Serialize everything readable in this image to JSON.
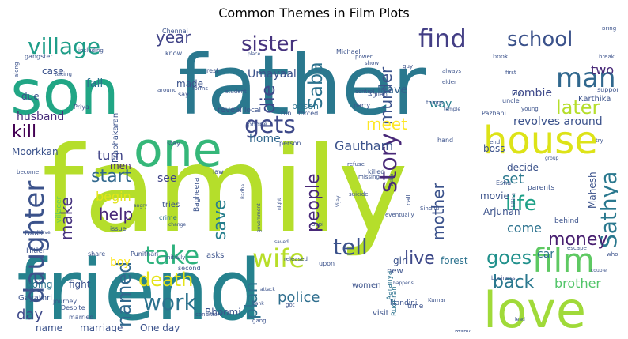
{
  "chart_data": {
    "type": "wordcloud",
    "title": "Common Themes in Film Plots",
    "colormap": "viridis",
    "background": "#ffffff",
    "words": [
      {
        "text": "family",
        "weight": 1.0,
        "color": "#b5de2b"
      },
      {
        "text": "friend",
        "weight": 0.8,
        "color": "#26828e"
      },
      {
        "text": "father",
        "weight": 0.8,
        "color": "#2a788e"
      },
      {
        "text": "son",
        "weight": 0.78,
        "color": "#21a685"
      },
      {
        "text": "love",
        "weight": 0.55,
        "color": "#a0da39"
      },
      {
        "text": "one",
        "weight": 0.52,
        "color": "#35b779"
      },
      {
        "text": "house",
        "weight": 0.45,
        "color": "#dde318"
      },
      {
        "text": "daughter",
        "weight": 0.4,
        "color": "#3b528b"
      },
      {
        "text": "film",
        "weight": 0.35,
        "color": "#5ec962"
      },
      {
        "text": "village",
        "weight": 0.32,
        "color": "#1f9e89"
      },
      {
        "text": "man",
        "weight": 0.32,
        "color": "#31688e"
      },
      {
        "text": "wife",
        "weight": 0.32,
        "color": "#b8de29"
      },
      {
        "text": "story",
        "weight": 0.31,
        "color": "#482878"
      },
      {
        "text": "find",
        "weight": 0.31,
        "color": "#433e85"
      },
      {
        "text": "take",
        "weight": 0.3,
        "color": "#2db27d"
      },
      {
        "text": "gets",
        "weight": 0.3,
        "color": "#3e4989"
      },
      {
        "text": "sister",
        "weight": 0.3,
        "color": "#46337e"
      },
      {
        "text": "school",
        "weight": 0.3,
        "color": "#3b528b"
      },
      {
        "text": "work",
        "weight": 0.28,
        "color": "#2c728e"
      },
      {
        "text": "tell",
        "weight": 0.28,
        "color": "#3b528b"
      },
      {
        "text": "Sathya",
        "weight": 0.27,
        "color": "#2a788e"
      },
      {
        "text": "death",
        "weight": 0.26,
        "color": "#e5e419"
      },
      {
        "text": "later",
        "weight": 0.26,
        "color": "#b5de2b"
      },
      {
        "text": "goes",
        "weight": 0.25,
        "color": "#21918c"
      },
      {
        "text": "life",
        "weight": 0.25,
        "color": "#1fa188"
      },
      {
        "text": "back",
        "weight": 0.25,
        "color": "#2a788e"
      },
      {
        "text": "money",
        "weight": 0.24,
        "color": "#481f70"
      },
      {
        "text": "named",
        "weight": 0.24,
        "color": "#31688e"
      },
      {
        "text": "die",
        "weight": 0.24,
        "color": "#3e4989"
      },
      {
        "text": "Saba",
        "weight": 0.23,
        "color": "#2c728e"
      },
      {
        "text": "save",
        "weight": 0.23,
        "color": "#277f8e"
      },
      {
        "text": "people",
        "weight": 0.22,
        "color": "#482878"
      },
      {
        "text": "mother",
        "weight": 0.22,
        "color": "#3b528b"
      },
      {
        "text": "plan",
        "weight": 0.22,
        "color": "#2c728e"
      },
      {
        "text": "help",
        "weight": 0.22,
        "color": "#482878"
      },
      {
        "text": "kill",
        "weight": 0.22,
        "color": "#440154"
      },
      {
        "text": "start",
        "weight": 0.22,
        "color": "#31688e"
      },
      {
        "text": "murder",
        "weight": 0.21,
        "color": "#3b528b"
      },
      {
        "text": "make",
        "weight": 0.21,
        "color": "#46327e"
      },
      {
        "text": "live",
        "weight": 0.21,
        "color": "#3e4989"
      },
      {
        "text": "year",
        "weight": 0.2,
        "color": "#414487"
      },
      {
        "text": "meet",
        "weight": 0.2,
        "color": "#fde725"
      },
      {
        "text": "day",
        "weight": 0.2,
        "color": "#3e4989"
      },
      {
        "text": "police",
        "weight": 0.18,
        "color": "#2e6e8e"
      },
      {
        "text": "come",
        "weight": 0.17,
        "color": "#2c728e"
      },
      {
        "text": "brother",
        "weight": 0.16,
        "color": "#52c569"
      },
      {
        "text": "Gautham",
        "weight": 0.16,
        "color": "#3b528b"
      },
      {
        "text": "set",
        "weight": 0.16,
        "color": "#2a788e"
      },
      {
        "text": "two",
        "weight": 0.16,
        "color": "#482878"
      },
      {
        "text": "revolves around",
        "weight": 0.15,
        "color": "#3b528b"
      },
      {
        "text": "home",
        "weight": 0.15,
        "color": "#31688e"
      },
      {
        "text": "begin",
        "weight": 0.15,
        "color": "#e2e418"
      },
      {
        "text": "turn",
        "weight": 0.15,
        "color": "#404387"
      },
      {
        "text": "husband",
        "weight": 0.14,
        "color": "#472c7a"
      },
      {
        "text": "way",
        "weight": 0.14,
        "color": "#277f8e"
      },
      {
        "text": "leave",
        "weight": 0.14,
        "color": "#33638d"
      },
      {
        "text": "zombie",
        "weight": 0.14,
        "color": "#3e4989"
      },
      {
        "text": "car",
        "weight": 0.14,
        "color": "#2c728e"
      },
      {
        "text": "fall",
        "weight": 0.13,
        "color": "#2c728e"
      },
      {
        "text": "Umayaal",
        "weight": 0.12,
        "color": "#3b528b"
      },
      {
        "text": "Mahesh",
        "weight": 0.11,
        "color": "#3b528b"
      },
      {
        "text": "men",
        "weight": 0.11,
        "color": "#482878"
      },
      {
        "text": "Moorkkan",
        "weight": 0.11,
        "color": "#3b528b"
      },
      {
        "text": "decide",
        "weight": 0.11,
        "color": "#3b528b"
      },
      {
        "text": "see",
        "weight": 0.11,
        "color": "#414487"
      },
      {
        "text": "movie",
        "weight": 0.11,
        "color": "#3b528b"
      },
      {
        "text": "Arjunan",
        "weight": 0.1,
        "color": "#3b528b"
      },
      {
        "text": "boy",
        "weight": 0.1,
        "color": "#fde725"
      },
      {
        "text": "girl",
        "weight": 0.1,
        "color": "#3b528b"
      },
      {
        "text": "forest",
        "weight": 0.1,
        "color": "#2c728e"
      },
      {
        "text": "One day",
        "weight": 0.1,
        "color": "#3b528b"
      },
      {
        "text": "marriage",
        "weight": 0.1,
        "color": "#3b528b"
      },
      {
        "text": "fight",
        "weight": 0.1,
        "color": "#3b528b"
      },
      {
        "text": "Bhoomi",
        "weight": 0.1,
        "color": "#3b528b"
      },
      {
        "text": "boss",
        "weight": 0.09,
        "color": "#3b528b"
      },
      {
        "text": "made",
        "weight": 0.09,
        "color": "#3b528b"
      },
      {
        "text": "case",
        "weight": 0.09,
        "color": "#3b528b"
      },
      {
        "text": "due",
        "weight": 0.09,
        "color": "#3b528b"
      },
      {
        "text": "name",
        "weight": 0.09,
        "color": "#3b528b"
      },
      {
        "text": "going",
        "weight": 0.09,
        "color": "#2c728e"
      },
      {
        "text": "Karthika",
        "weight": 0.08,
        "color": "#3b528b"
      },
      {
        "text": "prison",
        "weight": 0.08,
        "color": "#2c728e"
      },
      {
        "text": "Prabhakaran",
        "weight": 0.08,
        "color": "#3b528b"
      },
      {
        "text": "reveal",
        "weight": 0.08,
        "color": "#3b528b"
      },
      {
        "text": "Gayathri",
        "weight": 0.08,
        "color": "#3b528b"
      },
      {
        "text": "women",
        "weight": 0.08,
        "color": "#3b528b"
      },
      {
        "text": "Nandini",
        "weight": 0.08,
        "color": "#3b528b"
      },
      {
        "text": "Aaranya",
        "weight": 0.08,
        "color": "#2c728e"
      },
      {
        "text": "Rudhran",
        "weight": 0.08,
        "color": "#2c728e"
      },
      {
        "text": "time",
        "weight": 0.08,
        "color": "#3b528b"
      },
      {
        "text": "visit",
        "weight": 0.08,
        "color": "#3b528b"
      },
      {
        "text": "new",
        "weight": 0.08,
        "color": "#3b528b"
      },
      {
        "text": "asks",
        "weight": 0.08,
        "color": "#3b528b"
      },
      {
        "text": "tries",
        "weight": 0.08,
        "color": "#3b528b"
      },
      {
        "text": "crime",
        "weight": 0.07,
        "color": "#2c728e"
      },
      {
        "text": "gangster",
        "weight": 0.07,
        "color": "#3b528b"
      },
      {
        "text": "villager",
        "weight": 0.07,
        "color": "#5ec962"
      },
      {
        "text": "Hitler",
        "weight": 0.07,
        "color": "#3b528b"
      },
      {
        "text": "Daali",
        "weight": 0.07,
        "color": "#3b528b"
      },
      {
        "text": "Bagheera",
        "weight": 0.07,
        "color": "#3b528b"
      },
      {
        "text": "Punithan",
        "weight": 0.07,
        "color": "#3b528b"
      },
      {
        "text": "journey",
        "weight": 0.07,
        "color": "#3b528b"
      },
      {
        "text": "Despite",
        "weight": 0.07,
        "color": "#3b528b"
      },
      {
        "text": "married",
        "weight": 0.07,
        "color": "#3b528b"
      },
      {
        "text": "officer",
        "weight": 0.07,
        "color": "#2c728e"
      },
      {
        "text": "behind",
        "weight": 0.07,
        "color": "#3b528b"
      },
      {
        "text": "parents",
        "weight": 0.07,
        "color": "#3b528b"
      },
      {
        "text": "support",
        "weight": 0.07,
        "color": "#3b528b"
      },
      {
        "text": "party",
        "weight": 0.07,
        "color": "#3b528b"
      },
      {
        "text": "Agilan",
        "weight": 0.07,
        "color": "#3b528b"
      },
      {
        "text": "uncle",
        "weight": 0.07,
        "color": "#3b528b"
      },
      {
        "text": "Pazhani",
        "weight": 0.07,
        "color": "#3b528b"
      },
      {
        "text": "Priya",
        "weight": 0.07,
        "color": "#3b528b"
      },
      {
        "text": "stay",
        "weight": 0.07,
        "color": "#3b528b"
      },
      {
        "text": "local",
        "weight": 0.07,
        "color": "#3b528b"
      },
      {
        "text": "run",
        "weight": 0.07,
        "color": "#3b528b"
      },
      {
        "text": "forced",
        "weight": 0.07,
        "color": "#3b528b"
      },
      {
        "text": "person",
        "weight": 0.07,
        "color": "#3b528b"
      },
      {
        "text": "phone",
        "weight": 0.07,
        "color": "#3b528b"
      },
      {
        "text": "call",
        "weight": 0.07,
        "color": "#3b528b"
      },
      {
        "text": "Esha",
        "weight": 0.07,
        "color": "#3b528b"
      },
      {
        "text": "hand",
        "weight": 0.07,
        "color": "#3b528b"
      },
      {
        "text": "Sindhu",
        "weight": 0.06,
        "color": "#3b528b"
      },
      {
        "text": "killed",
        "weight": 0.06,
        "color": "#3b528b"
      },
      {
        "text": "missing",
        "weight": 0.06,
        "color": "#3b528b"
      },
      {
        "text": "suicide",
        "weight": 0.06,
        "color": "#3b528b"
      },
      {
        "text": "refuse",
        "weight": 0.06,
        "color": "#3b528b"
      },
      {
        "text": "eventually",
        "weight": 0.06,
        "color": "#3b528b"
      },
      {
        "text": "upon",
        "weight": 0.06,
        "color": "#3b528b"
      },
      {
        "text": "released",
        "weight": 0.06,
        "color": "#3b528b"
      },
      {
        "text": "share",
        "weight": 0.06,
        "color": "#3b528b"
      },
      {
        "text": "issue",
        "weight": 0.06,
        "color": "#3b528b"
      },
      {
        "text": "initially",
        "weight": 0.06,
        "color": "#3b528b"
      },
      {
        "text": "second",
        "weight": 0.06,
        "color": "#3b528b"
      },
      {
        "text": "condition",
        "weight": 0.06,
        "color": "#3b528b"
      },
      {
        "text": "gang",
        "weight": 0.06,
        "color": "#3b528b"
      },
      {
        "text": "agree",
        "weight": 0.06,
        "color": "#3b528b"
      },
      {
        "text": "entire",
        "weight": 0.06,
        "color": "#3b528b"
      },
      {
        "text": "Raju",
        "weight": 0.06,
        "color": "#3b528b"
      },
      {
        "text": "many",
        "weight": 0.06,
        "color": "#3b528b"
      },
      {
        "text": "learns",
        "weight": 0.06,
        "color": "#3b528b"
      },
      {
        "text": "mysterious",
        "weight": 0.06,
        "color": "#3b528b"
      },
      {
        "text": "business",
        "weight": 0.06,
        "color": "#3b528b"
      },
      {
        "text": "escape",
        "weight": 0.06,
        "color": "#3b528b"
      },
      {
        "text": "whose",
        "weight": 0.06,
        "color": "#3b528b"
      },
      {
        "text": "Chennai",
        "weight": 0.06,
        "color": "#3b528b"
      },
      {
        "text": "Michael",
        "weight": 0.06,
        "color": "#3b528b"
      },
      {
        "text": "power",
        "weight": 0.06,
        "color": "#3b528b"
      },
      {
        "text": "show",
        "weight": 0.06,
        "color": "#3b528b"
      },
      {
        "text": "guy",
        "weight": 0.06,
        "color": "#3b528b"
      },
      {
        "text": "book",
        "weight": 0.06,
        "color": "#3b528b"
      },
      {
        "text": "first",
        "weight": 0.06,
        "color": "#3b528b"
      },
      {
        "text": "always",
        "weight": 0.06,
        "color": "#3b528b"
      },
      {
        "text": "bring",
        "weight": 0.06,
        "color": "#3b528b"
      },
      {
        "text": "break",
        "weight": 0.06,
        "color": "#3b528b"
      },
      {
        "text": "trip",
        "weight": 0.06,
        "color": "#3b528b"
      },
      {
        "text": "elder",
        "weight": 0.06,
        "color": "#3b528b"
      },
      {
        "text": "control",
        "weight": 0.06,
        "color": "#3b528b"
      },
      {
        "text": "things",
        "weight": 0.06,
        "color": "#3b528b"
      },
      {
        "text": "student",
        "weight": 0.06,
        "color": "#3b528b"
      },
      {
        "text": "place",
        "weight": 0.06,
        "color": "#3b528b"
      },
      {
        "text": "rest",
        "weight": 0.06,
        "color": "#3b528b"
      },
      {
        "text": "forms",
        "weight": 0.06,
        "color": "#3b528b"
      },
      {
        "text": "know",
        "weight": 0.06,
        "color": "#3b528b"
      },
      {
        "text": "including",
        "weight": 0.06,
        "color": "#3b528b"
      },
      {
        "text": "along",
        "weight": 0.06,
        "color": "#3b528b"
      },
      {
        "text": "taking",
        "weight": 0.06,
        "color": "#3b528b"
      },
      {
        "text": "around",
        "weight": 0.06,
        "color": "#3b528b"
      },
      {
        "text": "say",
        "weight": 0.06,
        "color": "#3b528b"
      },
      {
        "text": "become",
        "weight": 0.06,
        "color": "#3b528b"
      },
      {
        "text": "relative",
        "weight": 0.06,
        "color": "#3b528b"
      },
      {
        "text": "change",
        "weight": 0.06,
        "color": "#3b528b"
      },
      {
        "text": "law",
        "weight": 0.06,
        "color": "#3b528b"
      },
      {
        "text": "angry",
        "weight": 0.06,
        "color": "#3b528b"
      },
      {
        "text": "government",
        "weight": 0.06,
        "color": "#3b528b"
      },
      {
        "text": "night",
        "weight": 0.06,
        "color": "#3b528b"
      },
      {
        "text": "saved",
        "weight": 0.06,
        "color": "#3b528b"
      },
      {
        "text": "Gopi",
        "weight": 0.06,
        "color": "#3b528b"
      },
      {
        "text": "attack",
        "weight": 0.06,
        "color": "#3b528b"
      },
      {
        "text": "Radha",
        "weight": 0.06,
        "color": "#3b528b"
      },
      {
        "text": "Vijay",
        "weight": 0.06,
        "color": "#3b528b"
      },
      {
        "text": "video",
        "weight": 0.06,
        "color": "#3b528b"
      },
      {
        "text": "group",
        "weight": 0.06,
        "color": "#3b528b"
      },
      {
        "text": "killing",
        "weight": 0.06,
        "color": "#3b528b"
      },
      {
        "text": "try",
        "weight": 0.06,
        "color": "#3b528b"
      },
      {
        "text": "young",
        "weight": 0.06,
        "color": "#3b528b"
      },
      {
        "text": "temple",
        "weight": 0.06,
        "color": "#3b528b"
      },
      {
        "text": "end",
        "weight": 0.06,
        "color": "#3b528b"
      },
      {
        "text": "bank",
        "weight": 0.06,
        "color": "#3b528b"
      },
      {
        "text": "couple",
        "weight": 0.06,
        "color": "#3b528b"
      },
      {
        "text": "lead",
        "weight": 0.06,
        "color": "#3b528b"
      },
      {
        "text": "care",
        "weight": 0.06,
        "color": "#3b528b"
      },
      {
        "text": "Kumar",
        "weight": 0.06,
        "color": "#3b528b"
      },
      {
        "text": "happens",
        "weight": 0.06,
        "color": "#3b528b"
      },
      {
        "text": "got",
        "weight": 0.06,
        "color": "#3b528b"
      }
    ]
  }
}
